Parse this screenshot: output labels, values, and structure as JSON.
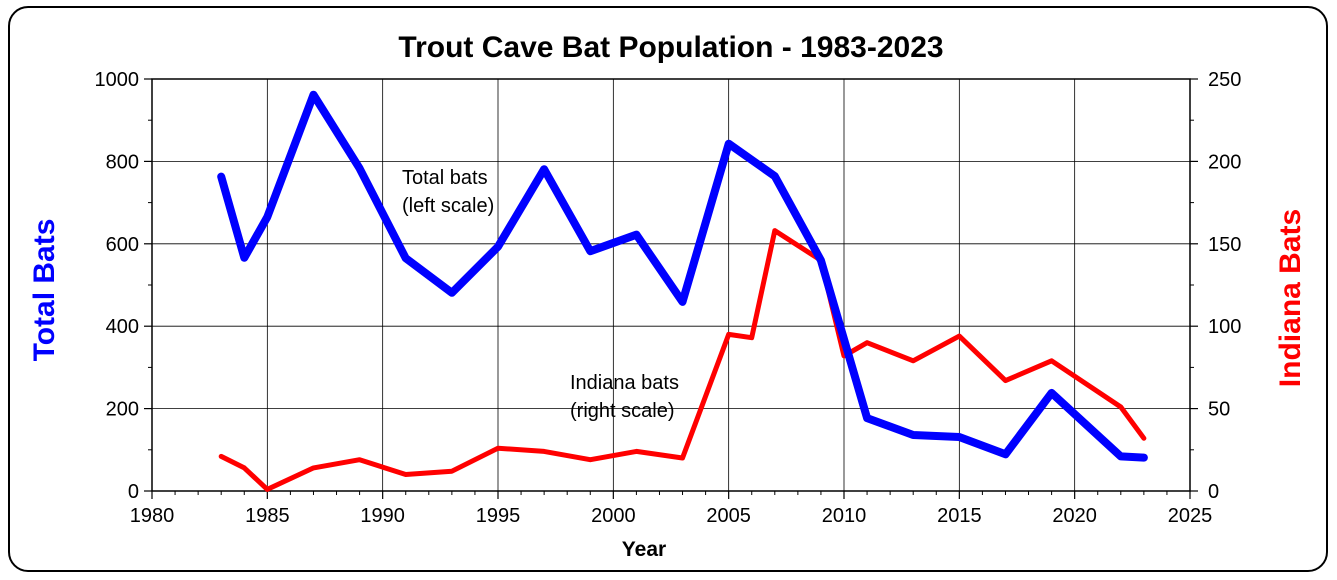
{
  "chart_data": {
    "type": "line",
    "title": "Trout Cave Bat Population - 1983-2023",
    "xlabel": "Year",
    "ylabel_left": "Total Bats",
    "ylabel_right": "Indiana Bats",
    "xlim": [
      1980,
      2025
    ],
    "ylim_left": [
      0,
      1000
    ],
    "ylim_right": [
      0,
      250
    ],
    "x_ticks": [
      1980,
      1985,
      1990,
      1995,
      2000,
      2005,
      2010,
      2015,
      2020,
      2025
    ],
    "y_left_ticks": [
      0,
      200,
      400,
      600,
      800,
      1000
    ],
    "y_right_ticks": [
      0,
      50,
      100,
      150,
      200,
      250
    ],
    "grid": true,
    "colors": {
      "total": "#0000ff",
      "indiana": "#ff0000",
      "left_label": "#0000ff",
      "right_label": "#ff0000"
    },
    "series": [
      {
        "axis": "left",
        "x": [
          1983,
          1984,
          1985,
          1987,
          1989,
          1991,
          1993,
          1995,
          1997,
          1999,
          2001,
          2003,
          2005,
          2007,
          2009,
          2011,
          2013,
          2015,
          2017,
          2019,
          2022,
          2023
        ],
        "values": [
          763,
          566,
          665,
          962,
          783,
          565,
          481,
          593,
          781,
          582,
          622,
          459,
          843,
          764,
          560,
          177,
          136,
          131,
          89,
          238,
          84,
          81
        ]
      },
      {
        "axis": "right",
        "x": [
          1983,
          1984,
          1985,
          1987,
          1989,
          1991,
          1993,
          1995,
          1997,
          1999,
          2001,
          2003,
          2005,
          2006,
          2007,
          2009,
          2010,
          2011,
          2013,
          2015,
          2017,
          2019,
          2022,
          2023
        ],
        "values": [
          21,
          14,
          1,
          14,
          19,
          10,
          12,
          26,
          24,
          19,
          24,
          20,
          95,
          93,
          158,
          140,
          82,
          90,
          79,
          94,
          67,
          79,
          51,
          32
        ]
      }
    ],
    "annotations": [
      {
        "lines": [
          "Total bats",
          "(left scale)"
        ]
      },
      {
        "lines": [
          "Indiana bats",
          "(right scale)"
        ]
      }
    ]
  }
}
